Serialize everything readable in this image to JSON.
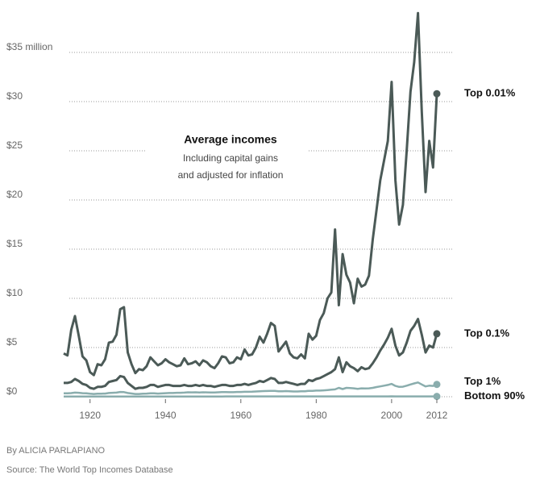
{
  "chart_data": {
    "type": "line",
    "title": "Average incomes",
    "subtitle": [
      "Including capital gains",
      "and adjusted for inflation"
    ],
    "byline": "By ALICIA PARLAPIANO",
    "source": "Source: The World Top Incomes Database",
    "x": [
      1913,
      1914,
      1915,
      1916,
      1917,
      1918,
      1919,
      1920,
      1921,
      1922,
      1923,
      1924,
      1925,
      1926,
      1927,
      1928,
      1929,
      1930,
      1931,
      1932,
      1933,
      1934,
      1935,
      1936,
      1937,
      1938,
      1939,
      1940,
      1941,
      1942,
      1943,
      1944,
      1945,
      1946,
      1947,
      1948,
      1949,
      1950,
      1951,
      1952,
      1953,
      1954,
      1955,
      1956,
      1957,
      1958,
      1959,
      1960,
      1961,
      1962,
      1963,
      1964,
      1965,
      1966,
      1967,
      1968,
      1969,
      1970,
      1971,
      1972,
      1973,
      1974,
      1975,
      1976,
      1977,
      1978,
      1979,
      1980,
      1981,
      1982,
      1983,
      1984,
      1985,
      1986,
      1987,
      1988,
      1989,
      1990,
      1991,
      1992,
      1993,
      1994,
      1995,
      1996,
      1997,
      1998,
      1999,
      2000,
      2001,
      2002,
      2003,
      2004,
      2005,
      2006,
      2007,
      2008,
      2009,
      2010,
      2011,
      2012
    ],
    "xlim": [
      1913,
      2012
    ],
    "xticks": [
      1920,
      1940,
      1960,
      1980,
      2000,
      2012
    ],
    "ylim": [
      0,
      40
    ],
    "yticks": [
      {
        "value": 0,
        "label": "$0"
      },
      {
        "value": 5,
        "label": "$5"
      },
      {
        "value": 10,
        "label": "$10"
      },
      {
        "value": 15,
        "label": "$15"
      },
      {
        "value": 20,
        "label": "$20"
      },
      {
        "value": 25,
        "label": "$25"
      },
      {
        "value": 30,
        "label": "$30"
      },
      {
        "value": 35,
        "label": "$35 million"
      }
    ],
    "grid": true,
    "series": [
      {
        "name": "Top 0.01%",
        "color": "#4b5a57",
        "values": [
          4.4,
          4.2,
          6.8,
          8.2,
          6.2,
          4.1,
          3.7,
          2.5,
          2.2,
          3.3,
          3.2,
          3.8,
          5.5,
          5.6,
          6.3,
          8.9,
          9.1,
          4.5,
          3.3,
          2.4,
          2.8,
          2.7,
          3.1,
          4.0,
          3.6,
          3.2,
          3.4,
          3.8,
          3.5,
          3.3,
          3.1,
          3.2,
          3.9,
          3.3,
          3.4,
          3.6,
          3.2,
          3.7,
          3.5,
          3.1,
          2.9,
          3.4,
          4.1,
          4.0,
          3.4,
          3.5,
          4.0,
          3.8,
          4.8,
          4.2,
          4.3,
          5.0,
          6.1,
          5.5,
          6.4,
          7.5,
          7.2,
          4.6,
          5.1,
          5.6,
          4.4,
          4.0,
          3.9,
          4.3,
          3.9,
          6.4,
          5.8,
          6.2,
          7.8,
          8.5,
          10.0,
          10.6,
          17.0,
          9.3,
          14.5,
          12.4,
          11.6,
          9.5,
          12.0,
          11.2,
          11.4,
          12.3,
          16.0,
          19.0,
          22.0,
          24.0,
          26.0,
          32.0,
          22.0,
          17.5,
          19.5,
          25.0,
          31.0,
          34.0,
          39.0,
          29.0,
          20.8,
          26.0,
          23.3,
          30.8
        ]
      },
      {
        "name": "Top 0.1%",
        "color": "#4b5a57",
        "values": [
          1.4,
          1.4,
          1.5,
          1.8,
          1.6,
          1.3,
          1.2,
          0.9,
          0.8,
          1.0,
          1.0,
          1.1,
          1.5,
          1.6,
          1.7,
          2.1,
          2.0,
          1.4,
          1.1,
          0.8,
          0.9,
          0.9,
          1.0,
          1.2,
          1.2,
          1.0,
          1.1,
          1.2,
          1.2,
          1.1,
          1.1,
          1.1,
          1.2,
          1.1,
          1.1,
          1.2,
          1.1,
          1.2,
          1.1,
          1.1,
          1.0,
          1.1,
          1.2,
          1.2,
          1.1,
          1.1,
          1.2,
          1.2,
          1.3,
          1.2,
          1.3,
          1.4,
          1.6,
          1.5,
          1.7,
          1.9,
          1.8,
          1.4,
          1.4,
          1.5,
          1.4,
          1.3,
          1.2,
          1.3,
          1.3,
          1.7,
          1.6,
          1.8,
          1.9,
          2.1,
          2.3,
          2.5,
          2.8,
          4.0,
          2.5,
          3.5,
          3.1,
          2.9,
          2.6,
          3.0,
          2.8,
          2.9,
          3.4,
          4.0,
          4.7,
          5.3,
          6.0,
          6.9,
          5.2,
          4.2,
          4.5,
          5.5,
          6.7,
          7.2,
          7.9,
          6.3,
          4.5,
          5.2,
          5.0,
          6.4
        ]
      },
      {
        "name": "Top 1%",
        "color": "#8aadad",
        "values": [
          0.35,
          0.35,
          0.37,
          0.42,
          0.4,
          0.36,
          0.35,
          0.3,
          0.28,
          0.3,
          0.31,
          0.32,
          0.38,
          0.4,
          0.42,
          0.48,
          0.47,
          0.38,
          0.33,
          0.28,
          0.28,
          0.3,
          0.32,
          0.35,
          0.35,
          0.32,
          0.34,
          0.36,
          0.38,
          0.38,
          0.4,
          0.4,
          0.42,
          0.45,
          0.44,
          0.45,
          0.43,
          0.45,
          0.44,
          0.43,
          0.43,
          0.45,
          0.47,
          0.47,
          0.46,
          0.46,
          0.48,
          0.48,
          0.5,
          0.5,
          0.51,
          0.53,
          0.56,
          0.57,
          0.58,
          0.6,
          0.6,
          0.55,
          0.55,
          0.57,
          0.56,
          0.53,
          0.53,
          0.55,
          0.56,
          0.6,
          0.6,
          0.62,
          0.62,
          0.65,
          0.68,
          0.72,
          0.75,
          0.9,
          0.78,
          0.9,
          0.88,
          0.85,
          0.8,
          0.85,
          0.84,
          0.85,
          0.9,
          0.98,
          1.05,
          1.12,
          1.2,
          1.3,
          1.1,
          1.0,
          1.02,
          1.12,
          1.25,
          1.35,
          1.45,
          1.25,
          1.05,
          1.12,
          1.1,
          1.25
        ]
      },
      {
        "name": "Bottom 90%",
        "color": "#8aadad",
        "values": [
          0.015,
          0.015,
          0.016,
          0.016,
          0.016,
          0.016,
          0.017,
          0.016,
          0.015,
          0.016,
          0.017,
          0.018,
          0.018,
          0.018,
          0.018,
          0.019,
          0.019,
          0.017,
          0.015,
          0.013,
          0.013,
          0.014,
          0.015,
          0.016,
          0.017,
          0.016,
          0.017,
          0.018,
          0.021,
          0.024,
          0.026,
          0.027,
          0.027,
          0.025,
          0.024,
          0.024,
          0.024,
          0.025,
          0.026,
          0.026,
          0.027,
          0.027,
          0.028,
          0.029,
          0.029,
          0.029,
          0.03,
          0.03,
          0.03,
          0.031,
          0.031,
          0.032,
          0.033,
          0.034,
          0.034,
          0.035,
          0.035,
          0.035,
          0.035,
          0.036,
          0.036,
          0.035,
          0.034,
          0.035,
          0.035,
          0.036,
          0.036,
          0.035,
          0.034,
          0.034,
          0.034,
          0.035,
          0.035,
          0.035,
          0.035,
          0.035,
          0.035,
          0.034,
          0.033,
          0.033,
          0.033,
          0.033,
          0.033,
          0.034,
          0.034,
          0.035,
          0.036,
          0.037,
          0.036,
          0.035,
          0.035,
          0.035,
          0.035,
          0.035,
          0.035,
          0.034,
          0.032,
          0.031,
          0.031,
          0.031
        ]
      }
    ]
  }
}
